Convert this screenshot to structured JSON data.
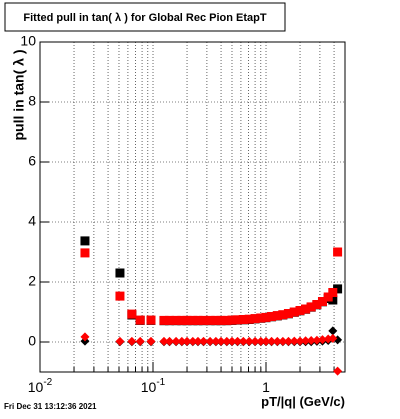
{
  "chart_data": {
    "type": "scatter",
    "title": "Fitted pull in tan( λ ) for Global Rec Pion EtapT",
    "x_label": "pT/|q| (GeV/c)",
    "y_label": "pull in tan( λ )",
    "timestamp": "Fri Dec 31 13:12:36 2021",
    "log_x": true,
    "grid": true,
    "xlim": [
      0.01,
      5
    ],
    "ylim": [
      -1,
      10
    ],
    "xticks": [
      {
        "value": 0.01,
        "label": "10^-2"
      },
      {
        "value": 0.1,
        "label": "10^-1"
      },
      1
    ],
    "yticks": [
      0,
      2,
      4,
      6,
      8,
      10
    ],
    "x": [
      0.025,
      0.051,
      0.065,
      0.077,
      0.096,
      0.125,
      0.14,
      0.16,
      0.18,
      0.2,
      0.225,
      0.25,
      0.28,
      0.32,
      0.36,
      0.4,
      0.45,
      0.5,
      0.56,
      0.63,
      0.71,
      0.8,
      0.9,
      1.0,
      1.12,
      1.26,
      1.41,
      1.58,
      1.78,
      2.0,
      2.24,
      2.51,
      2.82,
      3.16,
      3.55,
      3.9,
      4.3
    ],
    "series": [
      {
        "marker": "square",
        "color": "#000000",
        "values": [
          3.37,
          2.3,
          0.9,
          0.72,
          0.72,
          0.71,
          0.71,
          0.71,
          0.71,
          0.71,
          0.71,
          0.71,
          0.71,
          0.71,
          0.71,
          0.71,
          0.71,
          0.72,
          0.73,
          0.74,
          0.75,
          0.77,
          0.79,
          0.81,
          0.84,
          0.87,
          0.9,
          0.94,
          0.99,
          1.04,
          1.09,
          1.16,
          1.24,
          1.34,
          1.45,
          1.4,
          1.77
        ]
      },
      {
        "marker": "square",
        "color": "#ff0000",
        "values": [
          2.97,
          1.53,
          0.93,
          0.73,
          0.73,
          0.72,
          0.72,
          0.72,
          0.72,
          0.72,
          0.72,
          0.72,
          0.72,
          0.72,
          0.72,
          0.72,
          0.72,
          0.73,
          0.74,
          0.75,
          0.76,
          0.78,
          0.8,
          0.82,
          0.85,
          0.88,
          0.91,
          0.95,
          1.0,
          1.05,
          1.1,
          1.17,
          1.25,
          1.35,
          1.5,
          1.65,
          3.0
        ]
      },
      {
        "marker": "diamond",
        "color": "#000000",
        "values": [
          0.03,
          0.01,
          0.01,
          0.01,
          0.01,
          0.01,
          0.01,
          0.01,
          0.01,
          0.01,
          0.01,
          0.01,
          0.01,
          0.01,
          0.01,
          0.01,
          0.01,
          0.01,
          0.01,
          0.01,
          0.01,
          0.01,
          0.01,
          0.01,
          0.01,
          0.01,
          0.01,
          0.01,
          0.01,
          0.01,
          0.01,
          0.01,
          0.02,
          0.03,
          0.05,
          0.37,
          0.07
        ]
      },
      {
        "marker": "diamond",
        "color": "#ff0000",
        "values": [
          0.17,
          0.02,
          0.02,
          0.02,
          0.02,
          0.02,
          0.02,
          0.02,
          0.02,
          0.02,
          0.02,
          0.02,
          0.02,
          0.02,
          0.02,
          0.02,
          0.02,
          0.02,
          0.02,
          0.02,
          0.02,
          0.02,
          0.02,
          0.02,
          0.02,
          0.02,
          0.02,
          0.02,
          0.03,
          0.03,
          0.04,
          0.05,
          0.06,
          0.08,
          0.1,
          0.12,
          -0.97
        ]
      }
    ]
  }
}
